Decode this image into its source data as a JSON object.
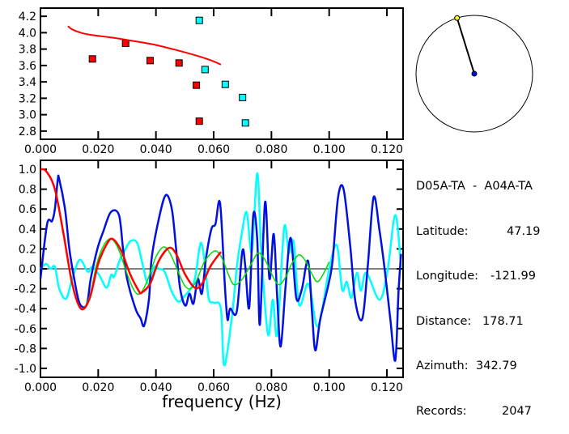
{
  "info": {
    "title": "D05A-TA  -  A04A-TA",
    "latitude_label": "Latitude:",
    "latitude": "47.19",
    "longitude_label": "Longitude:",
    "longitude": "-121.99",
    "distance_label": "Distance:",
    "distance": "178.71",
    "azimuth_label": "Azimuth:",
    "azimuth": "342.79",
    "records_label": "Records:",
    "records": "2047",
    "azimuth_deg": 342.79
  },
  "colors": {
    "red": "#ff0000",
    "cyan": "#00ffff",
    "blue": "#0010e0",
    "green": "#00dd00",
    "needle_tip": "#ffff00",
    "center": "#0010e0"
  },
  "chart_data": [
    {
      "type": "scatter",
      "title": "",
      "xlabel": "",
      "ylabel": "",
      "xlim": [
        0,
        0.1256
      ],
      "ylim": [
        2.7,
        4.3
      ],
      "xticks": [
        "0.000",
        "0.020",
        "0.040",
        "0.060",
        "0.080",
        "0.100",
        "0.120"
      ],
      "xtick_values": [
        0,
        0.02,
        0.04,
        0.06,
        0.08,
        0.1,
        0.12
      ],
      "yticks": [
        "2.8",
        "3.0",
        "3.2",
        "3.4",
        "3.6",
        "3.8",
        "4.0",
        "4.2"
      ],
      "ytick_values": [
        2.8,
        3.0,
        3.2,
        3.4,
        3.6,
        3.8,
        4.0,
        4.2
      ],
      "series": [
        {
          "name": "red-points",
          "kind": "points",
          "color": "#ff0000",
          "points": [
            [
              0.018,
              3.68
            ],
            [
              0.0295,
              3.87
            ],
            [
              0.038,
              3.66
            ],
            [
              0.048,
              3.63
            ],
            [
              0.054,
              3.36
            ],
            [
              0.055,
              2.92
            ]
          ]
        },
        {
          "name": "cyan-points",
          "kind": "points",
          "color": "#00ffff",
          "points": [
            [
              0.055,
              4.15
            ],
            [
              0.057,
              3.55
            ],
            [
              0.064,
              3.37
            ],
            [
              0.07,
              3.21
            ],
            [
              0.071,
              2.9
            ]
          ]
        },
        {
          "name": "red-curve",
          "kind": "line",
          "color": "#ff0000",
          "points": [
            [
              0.0095,
              4.08
            ],
            [
              0.011,
              4.04
            ],
            [
              0.014,
              4.0
            ],
            [
              0.018,
              3.97
            ],
            [
              0.025,
              3.94
            ],
            [
              0.032,
              3.9
            ],
            [
              0.04,
              3.85
            ],
            [
              0.048,
              3.78
            ],
            [
              0.055,
              3.71
            ],
            [
              0.06,
              3.65
            ],
            [
              0.0625,
              3.61
            ]
          ]
        }
      ]
    },
    {
      "type": "line",
      "title": "",
      "xlabel": "frequency (Hz)",
      "ylabel": "",
      "xlim": [
        0,
        0.1256
      ],
      "ylim": [
        -1.09,
        1.09
      ],
      "xticks": [
        "0.000",
        "0.020",
        "0.040",
        "0.060",
        "0.080",
        "0.100",
        "0.120"
      ],
      "xtick_values": [
        0,
        0.02,
        0.04,
        0.06,
        0.08,
        0.1,
        0.12
      ],
      "yticks": [
        "1.0",
        "0.8",
        "0.6",
        "0.4",
        "0.2",
        "0.0",
        "-0.2",
        "-0.4",
        "-0.6",
        "-0.8",
        "-1.0"
      ],
      "ytick_values": [
        1.0,
        0.8,
        0.6,
        0.4,
        0.2,
        0.0,
        -0.2,
        -0.4,
        -0.6,
        -0.8,
        -1.0
      ],
      "series": [
        {
          "name": "cyan",
          "color": "#00ffff",
          "points": [
            [
              0,
              0
            ],
            [
              0.002,
              0.05
            ],
            [
              0.0035,
              0
            ],
            [
              0.005,
              0.02
            ],
            [
              0.0065,
              -0.2
            ],
            [
              0.0089,
              -0.3
            ],
            [
              0.011,
              -0.1
            ],
            [
              0.0136,
              0.09
            ],
            [
              0.0164,
              -0.03
            ],
            [
              0.018,
              0.02
            ],
            [
              0.0205,
              -0.07
            ],
            [
              0.0229,
              -0.19
            ],
            [
              0.0245,
              -0.06
            ],
            [
              0.0255,
              -0.08
            ],
            [
              0.0275,
              0.09
            ],
            [
              0.0295,
              0.2
            ],
            [
              0.0312,
              0.28
            ],
            [
              0.0335,
              0.26
            ],
            [
              0.0354,
              0.04
            ],
            [
              0.0373,
              -0.15
            ],
            [
              0.0395,
              0.02
            ],
            [
              0.041,
              0
            ],
            [
              0.043,
              -0.03
            ],
            [
              0.0455,
              -0.23
            ],
            [
              0.0478,
              -0.33
            ],
            [
              0.0497,
              -0.28
            ],
            [
              0.0522,
              -0.19
            ],
            [
              0.0537,
              -0.07
            ],
            [
              0.0555,
              0.26
            ],
            [
              0.057,
              0.04
            ],
            [
              0.0583,
              -0.3
            ],
            [
              0.06,
              -0.34
            ],
            [
              0.0625,
              -0.4
            ],
            [
              0.0636,
              -0.97
            ],
            [
              0.0662,
              -0.51
            ],
            [
              0.0681,
              0.04
            ],
            [
              0.0695,
              0.31
            ],
            [
              0.0714,
              0.57
            ],
            [
              0.0732,
              0.17
            ],
            [
              0.0751,
              0.96
            ],
            [
              0.0765,
              0.15
            ],
            [
              0.0788,
              -0.66
            ],
            [
              0.0805,
              -0.31
            ],
            [
              0.082,
              -0.66
            ],
            [
              0.0844,
              0.41
            ],
            [
              0.086,
              0.16
            ],
            [
              0.0877,
              0.27
            ],
            [
              0.0896,
              -0.36
            ],
            [
              0.0928,
              -0.15
            ],
            [
              0.0956,
              -0.57
            ],
            [
              0.0975,
              -0.42
            ],
            [
              0.0998,
              -0.03
            ],
            [
              0.1026,
              0.24
            ],
            [
              0.1045,
              -0.21
            ],
            [
              0.1061,
              -0.13
            ],
            [
              0.1077,
              -0.29
            ],
            [
              0.1096,
              -0.04
            ],
            [
              0.111,
              -0.22
            ],
            [
              0.1129,
              -0.04
            ],
            [
              0.1174,
              -0.31
            ],
            [
              0.1202,
              -0.02
            ],
            [
              0.1229,
              0.54
            ],
            [
              0.1249,
              0.01
            ]
          ]
        },
        {
          "name": "blue",
          "color": "#0010e0",
          "points": [
            [
              0,
              -0.1
            ],
            [
              0.0023,
              0.45
            ],
            [
              0.004,
              0.48
            ],
            [
              0.005,
              0.6
            ],
            [
              0.006,
              0.9
            ],
            [
              0.0065,
              0.9
            ],
            [
              0.0085,
              0.6
            ],
            [
              0.01,
              0.2
            ],
            [
              0.0117,
              -0.1
            ],
            [
              0.0136,
              -0.35
            ],
            [
              0.016,
              -0.36
            ],
            [
              0.0174,
              -0.1
            ],
            [
              0.0197,
              0.2
            ],
            [
              0.0218,
              0.38
            ],
            [
              0.0244,
              0.57
            ],
            [
              0.0272,
              0.54
            ],
            [
              0.0286,
              0.2
            ],
            [
              0.03,
              -0.1
            ],
            [
              0.0329,
              -0.4
            ],
            [
              0.0347,
              -0.5
            ],
            [
              0.0359,
              -0.57
            ],
            [
              0.0376,
              -0.3
            ],
            [
              0.0385,
              0.1
            ],
            [
              0.041,
              0.5
            ],
            [
              0.0434,
              0.74
            ],
            [
              0.0455,
              0.6
            ],
            [
              0.047,
              0.2
            ],
            [
              0.0484,
              -0.2
            ],
            [
              0.0502,
              -0.37
            ],
            [
              0.0516,
              -0.25
            ],
            [
              0.053,
              -0.35
            ],
            [
              0.0545,
              -0.1
            ],
            [
              0.0559,
              -0.25
            ],
            [
              0.0573,
              0.1
            ],
            [
              0.0592,
              0.4
            ],
            [
              0.0606,
              0.45
            ],
            [
              0.0622,
              0.66
            ],
            [
              0.0639,
              -0.18
            ],
            [
              0.0648,
              -0.51
            ],
            [
              0.0657,
              -0.4
            ],
            [
              0.068,
              -0.43
            ],
            [
              0.0699,
              0.17
            ],
            [
              0.0709,
              0.04
            ],
            [
              0.0723,
              -0.39
            ],
            [
              0.0737,
              0.54
            ],
            [
              0.0751,
              0.28
            ],
            [
              0.076,
              -0.56
            ],
            [
              0.0778,
              0.67
            ],
            [
              0.0793,
              -0.1
            ],
            [
              0.0808,
              0.35
            ],
            [
              0.082,
              -0.29
            ],
            [
              0.0832,
              -0.78
            ],
            [
              0.0849,
              -0.18
            ],
            [
              0.0867,
              0.31
            ],
            [
              0.0886,
              -0.29
            ],
            [
              0.0905,
              -0.21
            ],
            [
              0.0927,
              0.08
            ],
            [
              0.0941,
              -0.45
            ],
            [
              0.0952,
              -0.82
            ],
            [
              0.0969,
              -0.51
            ],
            [
              0.0998,
              -0.15
            ],
            [
              0.1012,
              0.09
            ],
            [
              0.1031,
              0.72
            ],
            [
              0.105,
              0.8
            ],
            [
              0.1073,
              0.23
            ],
            [
              0.1091,
              -0.33
            ],
            [
              0.1115,
              -0.5
            ],
            [
              0.1134,
              0.04
            ],
            [
              0.1154,
              0.72
            ],
            [
              0.1174,
              0.39
            ],
            [
              0.1193,
              -0.02
            ],
            [
              0.1212,
              -0.51
            ],
            [
              0.1229,
              -0.92
            ],
            [
              0.124,
              -0.24
            ],
            [
              0.1249,
              0.15
            ]
          ]
        },
        {
          "name": "green",
          "color": "#00dd00",
          "points": [
            [
              0,
              1
            ],
            [
              0.002,
              0.98
            ],
            [
              0.005,
              0.8
            ],
            [
              0.008,
              0.35
            ],
            [
              0.011,
              -0.15
            ],
            [
              0.014,
              -0.4
            ],
            [
              0.017,
              -0.28
            ],
            [
              0.0195,
              0.05
            ],
            [
              0.022,
              0.24
            ],
            [
              0.0245,
              0.3
            ],
            [
              0.027,
              0.2
            ],
            [
              0.03,
              -0.05
            ],
            [
              0.0325,
              -0.22
            ],
            [
              0.0345,
              -0.25
            ],
            [
              0.037,
              -0.12
            ],
            [
              0.04,
              0.12
            ],
            [
              0.0427,
              0.22
            ],
            [
              0.045,
              0.15
            ],
            [
              0.048,
              -0.05
            ],
            [
              0.05,
              -0.17
            ],
            [
              0.052,
              -0.2
            ],
            [
              0.054,
              -0.12
            ],
            [
              0.057,
              0.08
            ],
            [
              0.0605,
              0.18
            ],
            [
              0.063,
              0.1
            ],
            [
              0.065,
              -0.05
            ],
            [
              0.0671,
              -0.16
            ],
            [
              0.07,
              -0.1
            ],
            [
              0.073,
              0.05
            ],
            [
              0.0755,
              0.16
            ],
            [
              0.078,
              0.08
            ],
            [
              0.08,
              -0.05
            ],
            [
              0.0825,
              -0.16
            ],
            [
              0.085,
              -0.08
            ],
            [
              0.087,
              0.05
            ],
            [
              0.0896,
              0.14
            ],
            [
              0.092,
              0.07
            ],
            [
              0.094,
              -0.05
            ],
            [
              0.0959,
              -0.13
            ],
            [
              0.098,
              -0.05
            ],
            [
              0.1,
              0.07
            ]
          ]
        },
        {
          "name": "red",
          "color": "#ff0000",
          "points": [
            [
              0,
              1
            ],
            [
              0.002,
              0.98
            ],
            [
              0.005,
              0.8
            ],
            [
              0.008,
              0.35
            ],
            [
              0.011,
              -0.15
            ],
            [
              0.014,
              -0.4
            ],
            [
              0.017,
              -0.3
            ],
            [
              0.02,
              0.05
            ],
            [
              0.023,
              0.25
            ],
            [
              0.025,
              0.3
            ],
            [
              0.028,
              0.18
            ],
            [
              0.031,
              -0.05
            ],
            [
              0.034,
              -0.22
            ],
            [
              0.035,
              -0.24
            ],
            [
              0.038,
              -0.15
            ],
            [
              0.041,
              0.08
            ],
            [
              0.0445,
              0.21
            ],
            [
              0.047,
              0.15
            ],
            [
              0.05,
              -0.05
            ],
            [
              0.0535,
              -0.19
            ],
            [
              0.056,
              -0.15
            ],
            [
              0.059,
              0.03
            ],
            [
              0.0625,
              0.17
            ]
          ]
        }
      ]
    }
  ]
}
